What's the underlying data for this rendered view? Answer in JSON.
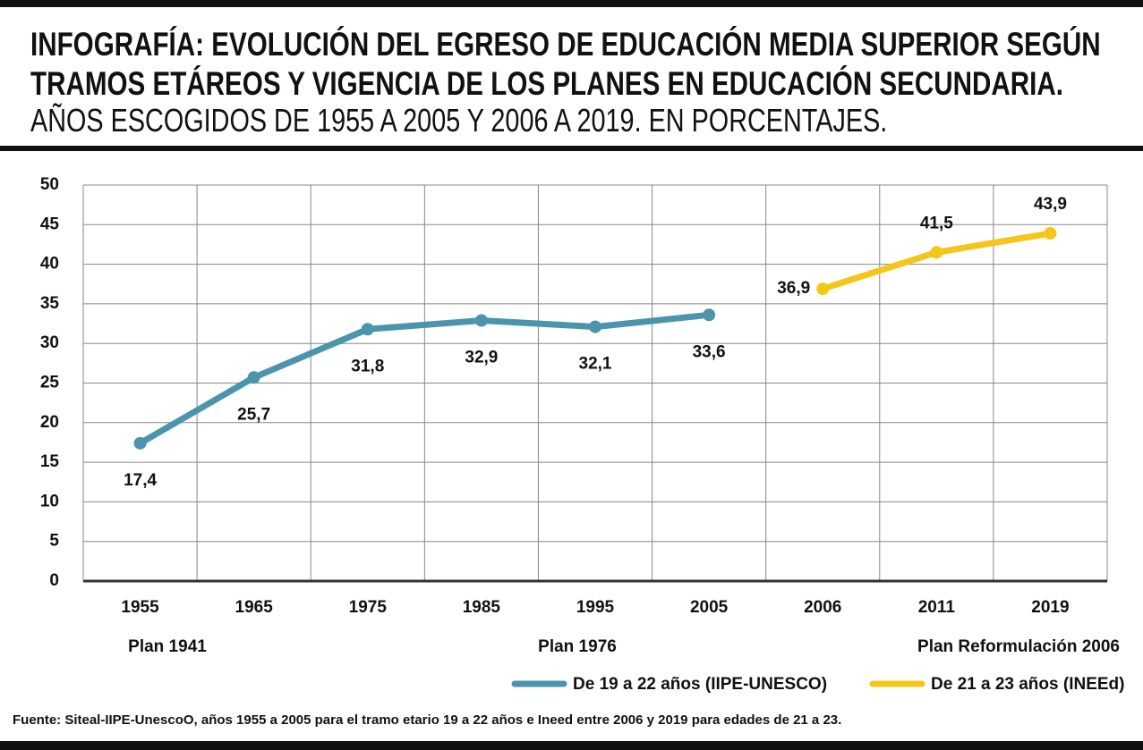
{
  "chart_data": {
    "type": "line",
    "title": "INFOGRAFÍA: EVOLUCIÓN DEL EGRESO DE EDUCACIÓN MEDIA SUPERIOR SEGÚN TRAMOS ETÁREOS Y VIGENCIA DE LOS PLANES EN EDUCACIÓN SECUNDARIA.",
    "subtitle": "AÑOS ESCOGIDOS DE 1955 A 2005 Y 2006 A 2019. EN PORCENTAJES.",
    "categories": [
      "1955",
      "1965",
      "1975",
      "1985",
      "1995",
      "2005",
      "2006",
      "2011",
      "2019"
    ],
    "series": [
      {
        "name": "De 19 a 22 años (IIPE-UNESCO)",
        "color": "#4a94ad",
        "values": [
          17.4,
          25.7,
          31.8,
          32.9,
          32.1,
          33.6,
          null,
          null,
          null
        ],
        "value_labels": [
          "17,4",
          "25,7",
          "31,8",
          "32,9",
          "32,1",
          "33,6",
          null,
          null,
          null
        ]
      },
      {
        "name": "De 21 a 23 años (INEEd)",
        "color": "#f5c518",
        "values": [
          null,
          null,
          null,
          null,
          null,
          null,
          36.9,
          41.5,
          43.9
        ],
        "value_labels": [
          null,
          null,
          null,
          null,
          null,
          null,
          "36,9",
          "41,5",
          "43,9"
        ]
      }
    ],
    "ylim": [
      0,
      50
    ],
    "yticks": [
      0,
      5,
      10,
      15,
      20,
      25,
      30,
      35,
      40,
      45,
      50
    ],
    "grid": true,
    "annotations": [
      "Plan 1941",
      "Plan 1976",
      "Plan Reformulación 2006"
    ],
    "source": "Fuente: Siteal-IIPE-UnescoO, años 1955 a 2005 para el tramo etario 19 a 22 años e Ineed entre 2006 y 2019 para edades de 21 a 23."
  }
}
